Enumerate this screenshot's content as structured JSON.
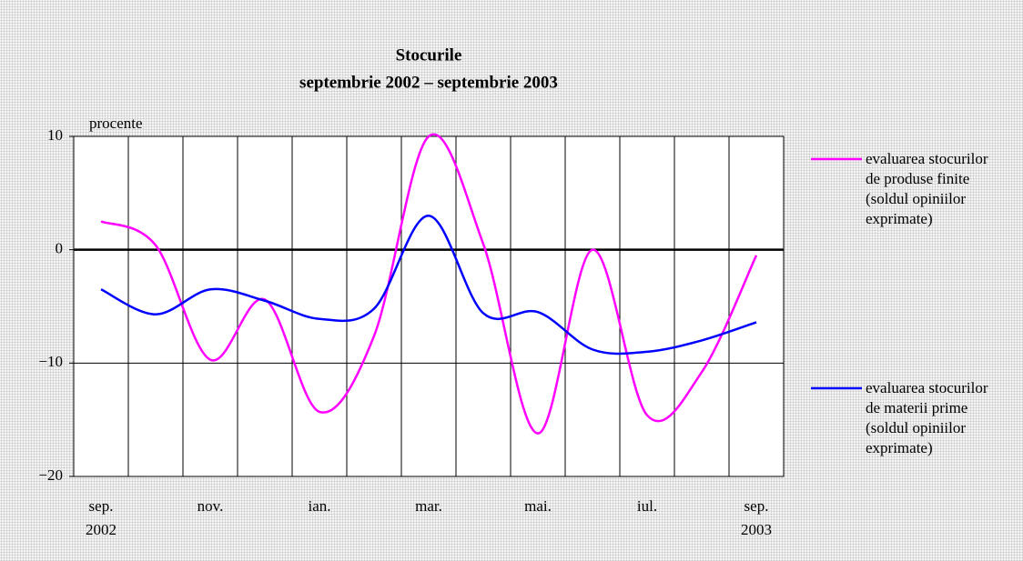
{
  "chart_data": {
    "type": "line",
    "title": "Stocurile",
    "subtitle": "septembrie 2002 – septembrie 2003",
    "y_label": "procente",
    "categories": [
      "sep.",
      null,
      "nov.",
      null,
      "ian.",
      null,
      "mar.",
      null,
      "mai.",
      null,
      "iul.",
      null,
      "sep."
    ],
    "years": [
      "2002",
      null,
      null,
      null,
      null,
      null,
      null,
      null,
      null,
      null,
      null,
      null,
      "2003"
    ],
    "series": [
      {
        "name": "evaluarea stocurilor de produse finite (soldul opiniilor exprimate)",
        "color": "#ff00ff",
        "values": [
          2.5,
          0.4,
          -9.7,
          -4.4,
          -14.3,
          -7.6,
          10,
          0.5,
          -16.2,
          0,
          -14.6,
          -10.8,
          -0.5
        ]
      },
      {
        "name": "evaluarea stocurilor de materii prime (soldul opiniilor exprimate)",
        "color": "#0000ff",
        "values": [
          -3.5,
          -5.7,
          -3.5,
          -4.5,
          -6.1,
          -5.2,
          3,
          -5.6,
          -5.5,
          -8.8,
          -9,
          -8,
          -6.4
        ]
      }
    ],
    "ylim": [
      -20,
      10
    ],
    "yticks": [
      10,
      0,
      {
        "value": -10,
        "label": "−10"
      },
      {
        "value": -20,
        "label": "−20"
      }
    ],
    "grid": true
  }
}
